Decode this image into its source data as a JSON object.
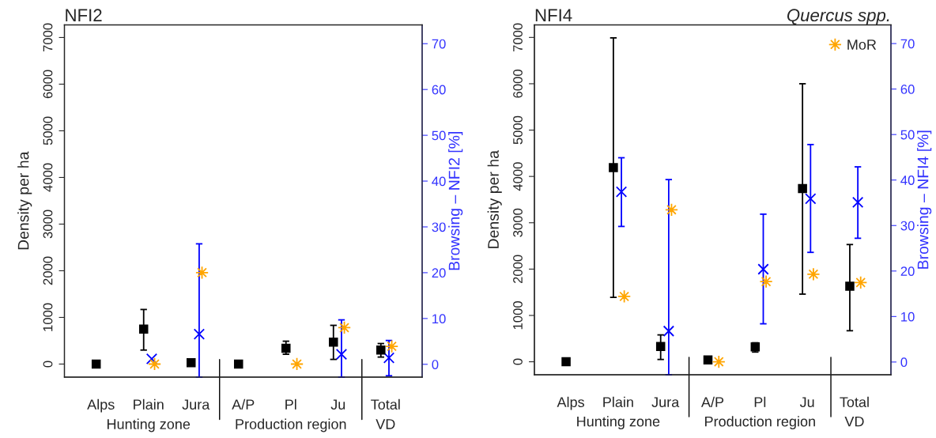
{
  "chart_data": [
    {
      "type": "scatter",
      "title": "NFI2",
      "ylabel": "Density per ha",
      "y2label": "Browsing – NFI2 [%]",
      "categories": [
        "Alps",
        "Plain",
        "Jura",
        "A/P",
        "Pl",
        "Ju",
        "Total"
      ],
      "annotations": [
        "Hunting zone",
        "Production region",
        "VD"
      ],
      "ylim": [
        -280,
        7270
      ],
      "yticks": [
        0,
        1000,
        2000,
        3000,
        4000,
        5000,
        6000,
        7000
      ],
      "y2lim": [
        -2.8,
        74.1
      ],
      "y2ticks": [
        0,
        10,
        20,
        30,
        40,
        50,
        60,
        70
      ],
      "grid": false,
      "legend": false,
      "series": [
        {
          "color": "#000000",
          "marker": "square",
          "values": [
            0,
            750,
            30,
            0,
            340,
            470,
            300
          ],
          "errors": [
            null,
            [
              300,
              1170
            ],
            null,
            null,
            [
              210,
              490
            ],
            [
              100,
              830
            ],
            [
              150,
              440
            ]
          ]
        },
        {
          "color": "#ffa500",
          "marker": "star",
          "values": [
            null,
            0,
            1960,
            null,
            0,
            780,
            380
          ]
        },
        {
          "color": "#0000ff",
          "marker": "cross",
          "axis": "y2",
          "values": [
            null,
            1.2,
            6.6,
            null,
            null,
            2.2,
            1.4
          ],
          "errors": [
            null,
            null,
            [
              -2.8,
              26.3
            ],
            null,
            null,
            [
              -2.8,
              9.7
            ],
            [
              -2.5,
              5.2
            ]
          ]
        }
      ]
    },
    {
      "type": "scatter",
      "title": "NFI4",
      "subtitle": "Quercus spp.",
      "ylabel": "Density per ha",
      "y2label": "Browsing – NFI4 [%]",
      "categories": [
        "Alps",
        "Plain",
        "Jura",
        "A/P",
        "Pl",
        "Ju",
        "Total"
      ],
      "annotations": [
        "Hunting zone",
        "Production region",
        "VD"
      ],
      "ylim": [
        -280,
        7270
      ],
      "yticks": [
        0,
        1000,
        2000,
        3000,
        4000,
        5000,
        6000,
        7000
      ],
      "y2lim": [
        -2.8,
        74.1
      ],
      "y2ticks": [
        0,
        10,
        20,
        30,
        40,
        50,
        60,
        70
      ],
      "grid": false,
      "legend": "top right",
      "series": [
        {
          "color": "#000000",
          "marker": "square",
          "values": [
            0,
            4190,
            330,
            40,
            320,
            3740,
            1630
          ],
          "errors": [
            null,
            [
              1390,
              6990
            ],
            [
              50,
              580
            ],
            null,
            [
              210,
              410
            ],
            [
              1460,
              6000
            ],
            [
              670,
              2530
            ]
          ]
        },
        {
          "name": "MoR",
          "color": "#ffa500",
          "marker": "star",
          "values": [
            null,
            1410,
            3280,
            0,
            1730,
            1890,
            1710
          ]
        },
        {
          "color": "#0000ff",
          "marker": "cross",
          "axis": "y2",
          "values": [
            null,
            37.4,
            6.8,
            null,
            20.4,
            35.9,
            35.1
          ],
          "errors": [
            null,
            [
              29.8,
              44.9
            ],
            [
              -2.8,
              40.1
            ],
            null,
            [
              8.4,
              32.5
            ],
            [
              24.1,
              47.8
            ],
            [
              27.2,
              42.9
            ]
          ]
        }
      ]
    }
  ]
}
